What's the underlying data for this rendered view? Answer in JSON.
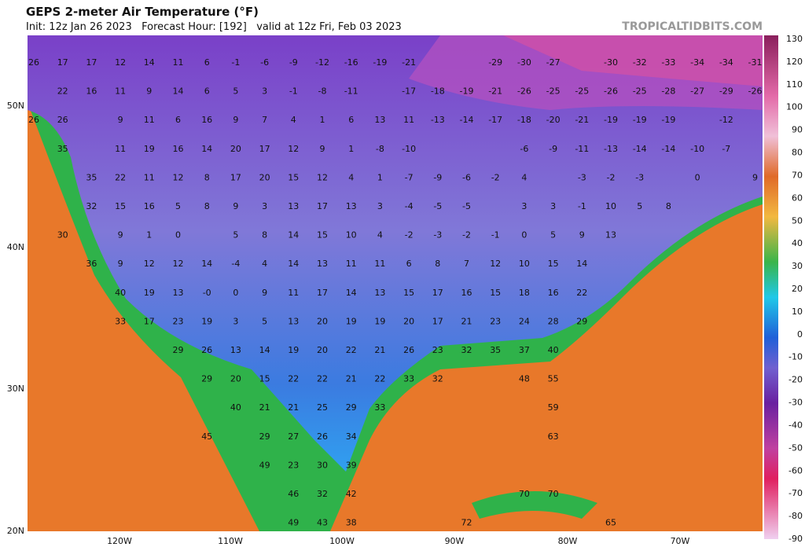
{
  "header": {
    "title": "GEPS 2-meter Air Temperature (°F)",
    "subtitle": "Init: 12z Jan 26 2023   Forecast Hour: [192]   valid at 12z Fri, Feb 03 2023",
    "credit": "TROPICALTIDBITS.COM"
  },
  "map": {
    "lat_labels": [
      "50N",
      "40N",
      "30N",
      "20N"
    ],
    "lon_labels": [
      "120W",
      "110W",
      "100W",
      "90W",
      "80W",
      "70W"
    ],
    "rows": [
      [
        "26",
        "17",
        "17",
        "12",
        "14",
        "11",
        "6",
        "-1",
        "-6",
        "-9",
        "-12",
        "-16",
        "-19",
        "-21",
        "-29",
        "-30",
        "-27",
        "-30",
        "-32",
        "-33",
        "-34",
        "-34",
        "-31"
      ],
      [
        "22",
        "16",
        "11",
        "9",
        "14",
        "6",
        "5",
        "3",
        "-1",
        "-8",
        "-11",
        "-17",
        "-18",
        "-19",
        "-21",
        "-26",
        "-25",
        "-25",
        "-26",
        "-25",
        "-28",
        "-27",
        "-29",
        "-26"
      ],
      [
        "26",
        "26",
        "9",
        "11",
        "6",
        "16",
        "9",
        "7",
        "4",
        "1",
        "6",
        "13",
        "11",
        "-13",
        "-14",
        "-17",
        "-18",
        "-20",
        "-21",
        "-19",
        "-19",
        "-19",
        "-12"
      ],
      [
        "35",
        "11",
        "19",
        "16",
        "14",
        "20",
        "17",
        "12",
        "9",
        "1",
        "-8",
        "-10",
        "-6",
        "-9",
        "-11",
        "-13",
        "-14",
        "-14",
        "-10",
        "-7"
      ],
      [
        "35",
        "22",
        "11",
        "12",
        "8",
        "17",
        "20",
        "15",
        "12",
        "4",
        "1",
        "-7",
        "-9",
        "-6",
        "-2",
        "4",
        "-3",
        "-2",
        "-3",
        "0",
        "9"
      ],
      [
        "32",
        "15",
        "16",
        "5",
        "8",
        "9",
        "3",
        "13",
        "17",
        "13",
        "3",
        "-4",
        "-5",
        "-5",
        "3",
        "3",
        "-1",
        "10",
        "5",
        "8"
      ],
      [
        "30",
        "9",
        "1",
        "0",
        "5",
        "8",
        "14",
        "15",
        "10",
        "4",
        "-2",
        "-3",
        "-2",
        "-1",
        "0",
        "5",
        "9",
        "13"
      ],
      [
        "36",
        "9",
        "12",
        "12",
        "14",
        "-4",
        "4",
        "14",
        "13",
        "11",
        "11",
        "6",
        "8",
        "7",
        "12",
        "10",
        "15",
        "14"
      ],
      [
        "40",
        "19",
        "13",
        "-0",
        "0",
        "9",
        "11",
        "17",
        "14",
        "13",
        "15",
        "17",
        "16",
        "15",
        "18",
        "16",
        "22"
      ],
      [
        "33",
        "17",
        "23",
        "19",
        "3",
        "5",
        "13",
        "20",
        "19",
        "19",
        "20",
        "17",
        "21",
        "23",
        "24",
        "28",
        "29"
      ],
      [
        "29",
        "26",
        "13",
        "14",
        "19",
        "20",
        "22",
        "21",
        "26",
        "23",
        "32",
        "35",
        "37",
        "40"
      ],
      [
        "29",
        "20",
        "15",
        "22",
        "22",
        "21",
        "22",
        "33",
        "32",
        "48",
        "55"
      ],
      [
        "40",
        "21",
        "21",
        "25",
        "29",
        "33",
        "59"
      ],
      [
        "45",
        "29",
        "27",
        "26",
        "34",
        "63"
      ],
      [
        "49",
        "23",
        "30",
        "39"
      ],
      [
        "46",
        "32",
        "42",
        "70",
        "70"
      ],
      [
        "49",
        "43",
        "38",
        "72",
        "65"
      ]
    ]
  },
  "colorbar": {
    "ticks": [
      "130",
      "120",
      "110",
      "100",
      "90",
      "80",
      "70",
      "60",
      "50",
      "40",
      "30",
      "20",
      "10",
      "0",
      "-10",
      "-20",
      "-30",
      "-40",
      "-50",
      "-60",
      "-70",
      "-80",
      "-90"
    ]
  }
}
